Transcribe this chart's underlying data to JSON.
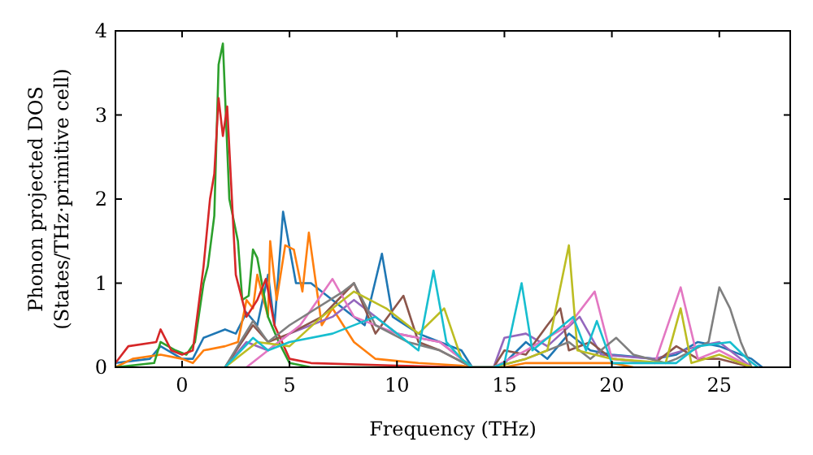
{
  "chart_data": {
    "type": "line",
    "xlabel": "Frequency (THz)",
    "ylabel": "Phonon projected DOS\n(States/THz·primitive cell)",
    "xlim": [
      -3.1,
      28.3
    ],
    "ylim": [
      0,
      4
    ],
    "xticks": [
      0,
      5,
      10,
      15,
      20,
      25
    ],
    "yticks": [
      0,
      1,
      2,
      3,
      4
    ],
    "grid": false,
    "marker": "none",
    "line_style": "solid",
    "series": [
      {
        "color": "#1f77b4",
        "x": [
          -3.1,
          -1.5,
          -1,
          0,
          0.5,
          1,
          2,
          2.5,
          3,
          3.5,
          4,
          4.3,
          4.7,
          5.3,
          6,
          7,
          8,
          8.5,
          9.3,
          9.8,
          11,
          12,
          13,
          13.5,
          14.5,
          15,
          16,
          17,
          18,
          19,
          20,
          22,
          23,
          24,
          25,
          26.5,
          27
        ],
        "values": [
          0.05,
          0.1,
          0.25,
          0.1,
          0.1,
          0.35,
          0.45,
          0.4,
          0.65,
          0.5,
          1.1,
          0.5,
          1.85,
          1.0,
          1.0,
          0.8,
          0.6,
          0.5,
          1.35,
          0.6,
          0.4,
          0.3,
          0.2,
          0,
          0,
          0.05,
          0.3,
          0.1,
          0.4,
          0.2,
          0.15,
          0.1,
          0.15,
          0.3,
          0.25,
          0.1,
          0
        ]
      },
      {
        "color": "#ff7f0e",
        "x": [
          -3.1,
          -2.3,
          -1,
          0,
          0.5,
          1,
          2,
          2.6,
          3,
          3.3,
          3.5,
          4,
          4.1,
          4.4,
          4.8,
          5.2,
          5.6,
          5.9,
          6.5,
          7,
          8,
          9,
          11,
          13,
          13.5,
          15,
          16,
          20,
          21
        ],
        "values": [
          0,
          0.1,
          0.15,
          0.1,
          0.05,
          0.2,
          0.25,
          0.3,
          0.8,
          0.7,
          1.1,
          0.6,
          1.5,
          0.8,
          1.45,
          1.4,
          0.9,
          1.6,
          0.5,
          0.7,
          0.3,
          0.1,
          0.05,
          0.02,
          0,
          0,
          0.05,
          0.05,
          0
        ]
      },
      {
        "color": "#2ca02c",
        "x": [
          -3.1,
          -1.3,
          -1,
          -0.3,
          0.2,
          0.6,
          1,
          1.2,
          1.5,
          1.7,
          1.9,
          2.2,
          2.6,
          2.8,
          3.1,
          3.3,
          3.5,
          4,
          4.5,
          5,
          6,
          13
        ],
        "values": [
          0,
          0.05,
          0.3,
          0.2,
          0.15,
          0.3,
          1.0,
          1.2,
          1.8,
          3.6,
          3.85,
          2.0,
          1.5,
          0.8,
          0.85,
          1.4,
          1.3,
          0.6,
          0.3,
          0.05,
          0,
          0
        ]
      },
      {
        "color": "#d62728",
        "x": [
          -3.1,
          -2.5,
          -1.2,
          -1,
          -0.5,
          0,
          0.5,
          1,
          1.3,
          1.5,
          1.7,
          1.9,
          2.1,
          2.5,
          3,
          3.5,
          3.9,
          4.3,
          5,
          6,
          10,
          13
        ],
        "values": [
          0.05,
          0.25,
          0.3,
          0.45,
          0.2,
          0.15,
          0.2,
          1.2,
          2.0,
          2.3,
          3.2,
          2.75,
          3.1,
          1.1,
          0.6,
          0.8,
          1.05,
          0.5,
          0.1,
          0.05,
          0.02,
          0
        ]
      },
      {
        "color": "#9467bd",
        "x": [
          2,
          3,
          4,
          5,
          7,
          8,
          10,
          12,
          13.5,
          14.5,
          15,
          16,
          17,
          18.5,
          19.5,
          22,
          24,
          25,
          26,
          26.5
        ],
        "values": [
          0,
          0.3,
          0.2,
          0.4,
          0.6,
          0.8,
          0.4,
          0.3,
          0,
          0,
          0.35,
          0.4,
          0.25,
          0.6,
          0.15,
          0.1,
          0.25,
          0.3,
          0.1,
          0
        ]
      },
      {
        "color": "#8c564b",
        "x": [
          2,
          3.3,
          4,
          5,
          6.5,
          8,
          9,
          10.3,
          11,
          12,
          13.5,
          14.5,
          15,
          16,
          17,
          17.6,
          18,
          19,
          20,
          22,
          23,
          24,
          25,
          26.5
        ],
        "values": [
          0,
          0.5,
          0.3,
          0.4,
          0.6,
          1.0,
          0.4,
          0.85,
          0.3,
          0.2,
          0,
          0,
          0.2,
          0.15,
          0.5,
          0.7,
          0.2,
          0.3,
          0.1,
          0.05,
          0.25,
          0.1,
          0.1,
          0
        ]
      },
      {
        "color": "#e377c2",
        "x": [
          3,
          4,
          5.5,
          7,
          8,
          10,
          12,
          13.5,
          14.5,
          16,
          18,
          19.2,
          20,
          22,
          23.2,
          24,
          25,
          26.5
        ],
        "values": [
          0,
          0.2,
          0.5,
          1.05,
          0.6,
          0.4,
          0.3,
          0,
          0,
          0.2,
          0.5,
          0.9,
          0.1,
          0.05,
          0.95,
          0.1,
          0.2,
          0
        ]
      },
      {
        "color": "#7f7f7f",
        "x": [
          2,
          3.3,
          4,
          5,
          7.5,
          8,
          9,
          10.5,
          12,
          13.5,
          14.5,
          16,
          18,
          19,
          20.2,
          21,
          22.5,
          23,
          24.5,
          25,
          25.5,
          26,
          26.5
        ],
        "values": [
          0,
          0.55,
          0.3,
          0.5,
          0.9,
          1.0,
          0.5,
          0.3,
          0.2,
          0,
          0,
          0.1,
          0.3,
          0.1,
          0.35,
          0.15,
          0.05,
          0.1,
          0.3,
          0.95,
          0.7,
          0.3,
          0
        ]
      },
      {
        "color": "#bcbd22",
        "x": [
          2,
          3.5,
          5,
          6.5,
          8,
          9.5,
          11,
          12.2,
          13,
          13.5,
          14.5,
          16,
          17,
          18,
          18.4,
          20,
          22.5,
          23.2,
          23.7,
          25,
          26.5
        ],
        "values": [
          0,
          0.3,
          0.25,
          0.6,
          0.9,
          0.7,
          0.4,
          0.7,
          0.1,
          0,
          0,
          0.1,
          0.2,
          1.45,
          0.2,
          0.1,
          0.05,
          0.7,
          0.05,
          0.15,
          0
        ]
      },
      {
        "color": "#17becf",
        "x": [
          2,
          3.3,
          4,
          5,
          7,
          9,
          10,
          11,
          11.7,
          12.3,
          13,
          13.5,
          14.5,
          15,
          15.8,
          16.3,
          18.2,
          18.8,
          19.3,
          20,
          23,
          24,
          25.5,
          26.3,
          26.8
        ],
        "values": [
          0,
          0.35,
          0.2,
          0.3,
          0.4,
          0.6,
          0.4,
          0.2,
          1.15,
          0.3,
          0.1,
          0,
          0,
          0.05,
          1.0,
          0.2,
          0.6,
          0.2,
          0.55,
          0.05,
          0.05,
          0.25,
          0.3,
          0.1,
          0
        ]
      }
    ]
  }
}
